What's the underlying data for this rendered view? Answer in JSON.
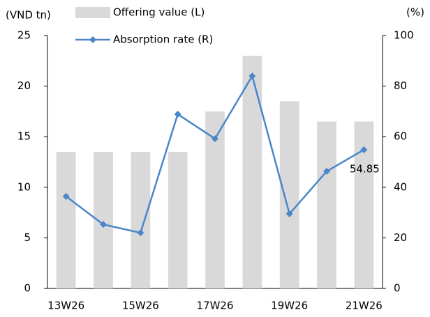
{
  "chart_data": {
    "type": "bar",
    "y_label": "(VND tn)",
    "y2_label": "(%)",
    "categories": [
      "13W26",
      null,
      "15W26",
      null,
      "17W26",
      null,
      "19W26",
      null,
      "21W26"
    ],
    "series": [
      {
        "name": "Offering value (L)",
        "type": "bar",
        "color": "#d9d9d9",
        "values": [
          13.5,
          13.5,
          13.5,
          13.5,
          17.5,
          23,
          18.5,
          16.5,
          16.5
        ]
      },
      {
        "name": "Absorption rate (R)",
        "type": "line",
        "axis": "y2",
        "color": "#4a86c8",
        "values": [
          36.4,
          25.3,
          22.0,
          68.9,
          59.2,
          84.0,
          29.5,
          46.3,
          54.85
        ],
        "value_labels": [
          null,
          null,
          null,
          null,
          null,
          null,
          null,
          null,
          "54.85"
        ]
      }
    ],
    "ylim": [
      0,
      25
    ],
    "yticks": [
      0,
      5,
      10,
      15,
      20,
      25
    ],
    "y2lim": [
      0,
      100
    ],
    "y2ticks": [
      0,
      20,
      40,
      60,
      80,
      100
    ],
    "grid": false
  }
}
